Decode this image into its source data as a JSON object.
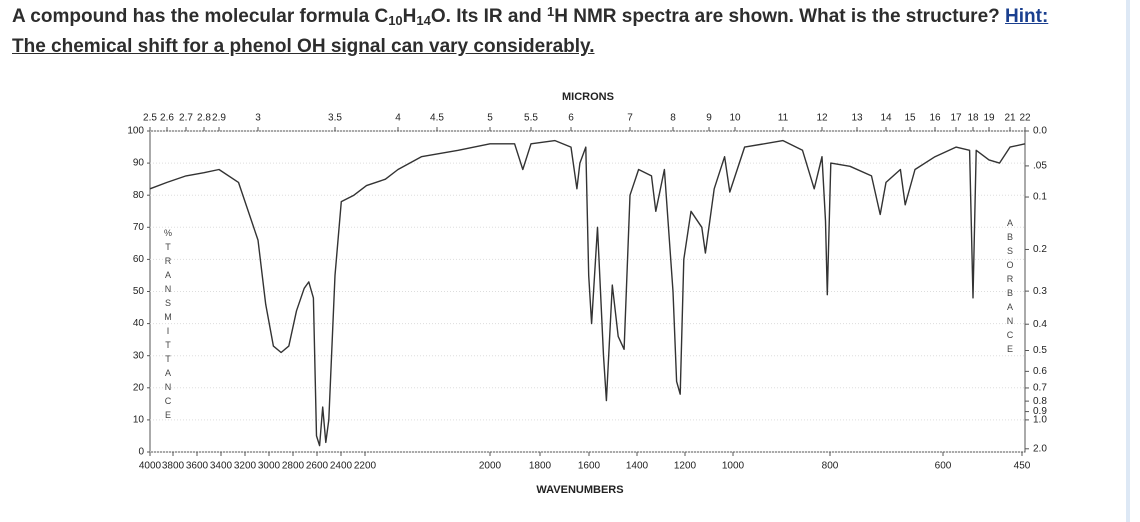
{
  "question": {
    "parts": [
      "A compound has the molecular formula C",
      "10",
      "H",
      "14",
      "O.  Its IR and ",
      "1",
      "H NMR spectra are shown.  What is the structure? "
    ],
    "hint_label": "Hint:",
    "hint_text": "The chemical shift for a phenol OH signal can vary considerably."
  },
  "chart_data": {
    "type": "line",
    "xlabel": "MICRONS",
    "x2label": "WAVENUMBERS",
    "ylabel": "%TRANSMITTANCE",
    "y2label": "ABSORBANCE",
    "xlim": [
      2.5,
      22
    ],
    "ylim": [
      0,
      100
    ],
    "x2lim": [
      4000,
      450
    ],
    "grid": true,
    "color": "#333333",
    "xticks": [
      2.5,
      2.6,
      2.7,
      2.8,
      2.9,
      3,
      3.5,
      4,
      4.5,
      5,
      5.5,
      6,
      7,
      8,
      9,
      10,
      11,
      12,
      13,
      14,
      15,
      16,
      17,
      18,
      19,
      21,
      22
    ],
    "x2ticks": [
      4000,
      3800,
      3600,
      3400,
      3200,
      3000,
      2800,
      2600,
      2400,
      2200,
      2000,
      1800,
      1600,
      1400,
      1200,
      1000,
      800,
      600,
      450
    ],
    "yticks": [
      0,
      10,
      20,
      30,
      40,
      50,
      60,
      70,
      80,
      90,
      100
    ],
    "y2ticks": [
      {
        "value": 0,
        "label": "0.0"
      },
      {
        "value": 0.05,
        "label": ".05"
      },
      0.1,
      0.2,
      0.3,
      0.4,
      0.5,
      0.6,
      0.7,
      0.8,
      0.9,
      {
        "value": 1,
        "label": "1.0"
      },
      {
        "value": 2,
        "label": "2.0"
      }
    ],
    "x": [
      2.5,
      2.6,
      2.7,
      2.8,
      2.9,
      2.95,
      3.0,
      3.05,
      3.1,
      3.15,
      3.2,
      3.25,
      3.3,
      3.33,
      3.36,
      3.38,
      3.4,
      3.42,
      3.44,
      3.46,
      3.5,
      3.55,
      3.65,
      3.75,
      3.9,
      4.0,
      4.3,
      4.7,
      5.0,
      5.3,
      5.4,
      5.5,
      5.8,
      6.0,
      6.1,
      6.15,
      6.25,
      6.3,
      6.35,
      6.45,
      6.55,
      6.6,
      6.7,
      6.8,
      6.9,
      7.0,
      7.2,
      7.5,
      7.6,
      7.8,
      8.0,
      8.1,
      8.2,
      8.3,
      8.5,
      8.8,
      8.9,
      9.2,
      9.6,
      9.8,
      10.2,
      11.0,
      11.5,
      11.8,
      12.0,
      12.1,
      12.15,
      12.25,
      12.8,
      13.5,
      13.8,
      14.0,
      14.6,
      14.8,
      15.2,
      16.0,
      17.0,
      17.8,
      18.0,
      18.2,
      19,
      20,
      21,
      22
    ],
    "values": [
      82,
      84,
      86,
      87,
      88,
      84,
      66,
      46,
      33,
      31,
      33,
      44,
      51,
      53,
      48,
      5,
      2,
      14,
      3,
      10,
      55,
      78,
      80,
      83,
      85,
      88,
      92,
      94,
      96,
      96,
      88,
      96,
      97,
      95,
      82,
      90,
      95,
      55,
      40,
      70,
      30,
      16,
      52,
      36,
      32,
      80,
      88,
      86,
      75,
      88,
      50,
      22,
      18,
      60,
      75,
      70,
      62,
      82,
      92,
      81,
      95,
      97,
      94,
      82,
      92,
      72,
      49,
      90,
      89,
      86,
      74,
      84,
      88,
      77,
      88,
      92,
      95,
      94,
      48,
      94,
      91,
      90,
      95,
      96
    ]
  }
}
